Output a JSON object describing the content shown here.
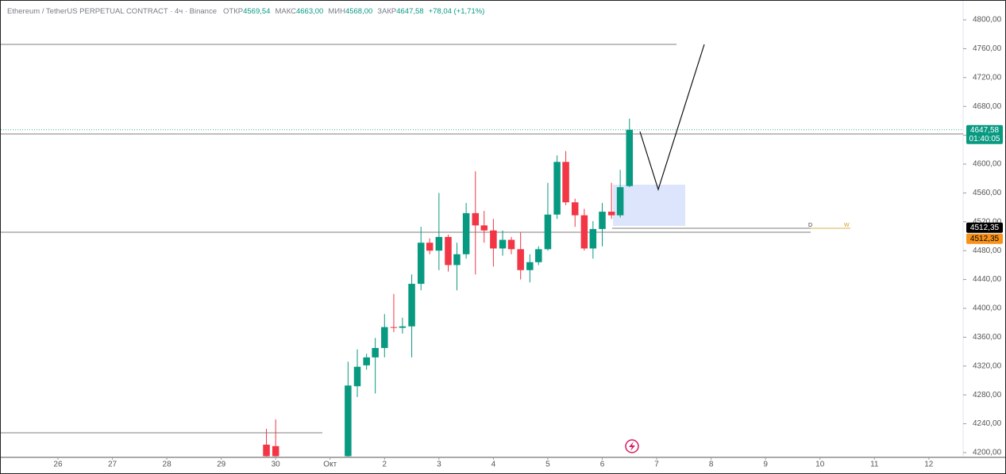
{
  "chart_data": {
    "type": "candlestick",
    "title": "Ethereum / TetherUS PERPETUAL CONTRACT · 4ч · Binance",
    "header_values": [
      {
        "label": "ОТКР",
        "value": "4569,54"
      },
      {
        "label": "МАКС",
        "value": "4663,00"
      },
      {
        "label": "МИН",
        "value": "4568,00"
      },
      {
        "label": "ЗАКР",
        "value": "4647,58"
      }
    ],
    "change": "+78,04 (+1,71%)",
    "up_color": "#089981",
    "down_color": "#f23645",
    "x": [
      29.83,
      30,
      31.33,
      31.5,
      31.67,
      31.83,
      32,
      32.17,
      32.33,
      32.5,
      32.67,
      32.83,
      33,
      33.17,
      33.33,
      33.5,
      33.67,
      33.83,
      34,
      34.17,
      34.33,
      34.5,
      34.67,
      34.83,
      35,
      35.17,
      35.33,
      35.5,
      35.67,
      35.83,
      36,
      36.17,
      36.33,
      36.5
    ],
    "open": [
      4211,
      4209,
      4195,
      4292,
      4321,
      4332,
      4345,
      4374,
      4373,
      4375,
      4434,
      4491,
      4480,
      4499,
      4460,
      4475,
      4532,
      4515,
      4508,
      4483,
      4495,
      4482,
      4453,
      4464,
      4482,
      4530,
      4603,
      4547,
      4529,
      4483,
      4510,
      4534,
      4529,
      4569.54
    ],
    "high": [
      4233,
      4246,
      4326,
      4343,
      4337,
      4359,
      4392,
      4420,
      4387,
      4447,
      4513,
      4497,
      4560,
      4502,
      4491,
      4546,
      4590,
      4535,
      4524,
      4508,
      4499,
      4505,
      4475,
      4486,
      4574,
      4612,
      4618,
      4552,
      4538,
      4521,
      4546,
      4574,
      4592,
      4663
    ],
    "low": [
      4190,
      4190,
      4180,
      4277,
      4315,
      4282,
      4332,
      4367,
      4365,
      4332,
      4425,
      4475,
      4453,
      4451,
      4425,
      4469,
      4447,
      4491,
      4458,
      4473,
      4475,
      4440,
      4436,
      4460,
      4480,
      4524,
      4543,
      4513,
      4480,
      4469,
      4486,
      4524,
      4526,
      4568
    ],
    "close": [
      4195,
      4195,
      4293,
      4319,
      4332,
      4345,
      4374,
      4373,
      4375,
      4434,
      4491,
      4480,
      4499,
      4460,
      4475,
      4532,
      4515,
      4508,
      4483,
      4495,
      4482,
      4453,
      4464,
      4482,
      4530,
      4603,
      4547,
      4529,
      4483,
      4510,
      4534,
      4529,
      4568,
      4647.58
    ],
    "xlim": [
      24.95,
      42.63
    ],
    "xticks": [
      {
        "value": 26,
        "label": "26"
      },
      {
        "value": 27,
        "label": "27"
      },
      {
        "value": 28,
        "label": "28"
      },
      {
        "value": 29,
        "label": "29"
      },
      {
        "value": 30,
        "label": "30"
      },
      {
        "value": 31,
        "label": "Окт"
      },
      {
        "value": 32,
        "label": "2"
      },
      {
        "value": 33,
        "label": "3"
      },
      {
        "value": 34,
        "label": "4"
      },
      {
        "value": 35,
        "label": "5"
      },
      {
        "value": 36,
        "label": "6"
      },
      {
        "value": 37,
        "label": "7"
      },
      {
        "value": 38,
        "label": "8"
      },
      {
        "value": 39,
        "label": "9"
      },
      {
        "value": 40,
        "label": "10"
      },
      {
        "value": 41,
        "label": "11"
      },
      {
        "value": 42,
        "label": "12"
      }
    ],
    "ylim": [
      4194.5,
      4826.4
    ],
    "yticks": [
      {
        "value": 4200,
        "label": "4200,00"
      },
      {
        "value": 4240,
        "label": "4240,00"
      },
      {
        "value": 4280,
        "label": "4280,00"
      },
      {
        "value": 4320,
        "label": "4320,00"
      },
      {
        "value": 4360,
        "label": "4360,00"
      },
      {
        "value": 4400,
        "label": "4400,00"
      },
      {
        "value": 4440,
        "label": "4440,00"
      },
      {
        "value": 4480,
        "label": "4480,00"
      },
      {
        "value": 4520,
        "label": "4520,00"
      },
      {
        "value": 4560,
        "label": "4560,00"
      },
      {
        "value": 4600,
        "label": "4600,00"
      },
      {
        "value": 4640,
        "label": "4640,00"
      },
      {
        "value": 4680,
        "label": "4680,00"
      },
      {
        "value": 4720,
        "label": "4720,00"
      },
      {
        "value": 4760,
        "label": "4760,00"
      },
      {
        "value": 4800,
        "label": "4800,00"
      }
    ],
    "last_price": {
      "value": 4647.58,
      "label": "4647,58",
      "countdown": "01:40:05"
    },
    "marker_prices": [
      {
        "value": 4512.35,
        "label": "4512,35",
        "color": "#000000"
      },
      {
        "value": 4512.35,
        "label": "4512,35",
        "color": "#f7931a"
      }
    ],
    "annotations": [
      "D",
      "W"
    ]
  }
}
